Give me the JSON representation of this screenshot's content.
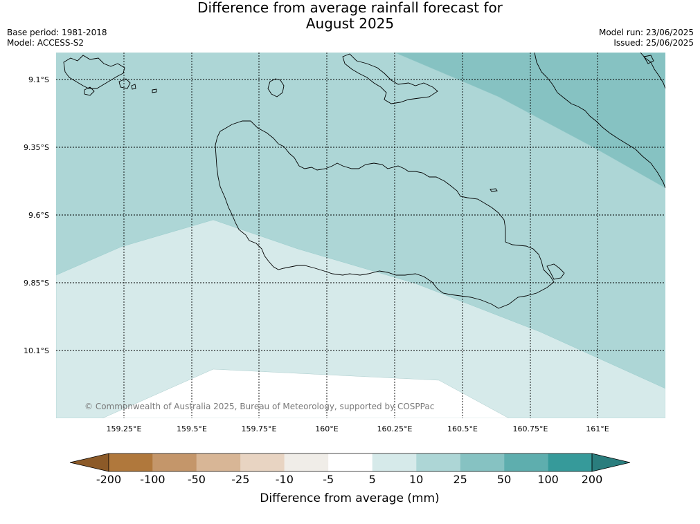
{
  "title_line1": "Difference from average rainfall forecast for",
  "title_line2": "August 2025",
  "meta": {
    "base_period": "Base period: 1981-2018",
    "model": "Model: ACCESS-S2",
    "model_run": "Model run: 23/06/2025",
    "issued": "Issued: 25/06/2025"
  },
  "map": {
    "lat_labels": [
      "9.1°S",
      "9.35°S",
      "9.6°S",
      "9.85°S",
      "10.1°S"
    ],
    "lon_labels": [
      "159.25°E",
      "159.5°E",
      "159.75°E",
      "160°E",
      "160.25°E",
      "160.5°E",
      "160.75°E",
      "161°E"
    ],
    "copyright": "© Commonwealth of Australia 2025, Bureau of Meteorology, supported by COSPPac"
  },
  "colorbar": {
    "title": "Difference from average (mm)",
    "tick_labels": [
      "-200",
      "-100",
      "-50",
      "-25",
      "-10",
      "-5",
      "5",
      "10",
      "25",
      "50",
      "100",
      "200"
    ],
    "colors": {
      "below_min": "#8c5a28",
      "bins": [
        "#b0783c",
        "#c4966a",
        "#d8b696",
        "#e8d4c2",
        "#f0ede8",
        "#ffffff",
        "#d6eaea",
        "#add6d6",
        "#86c2c2",
        "#5eaeae",
        "#369a9a"
      ],
      "above_max": "#2a7d7d"
    }
  }
}
